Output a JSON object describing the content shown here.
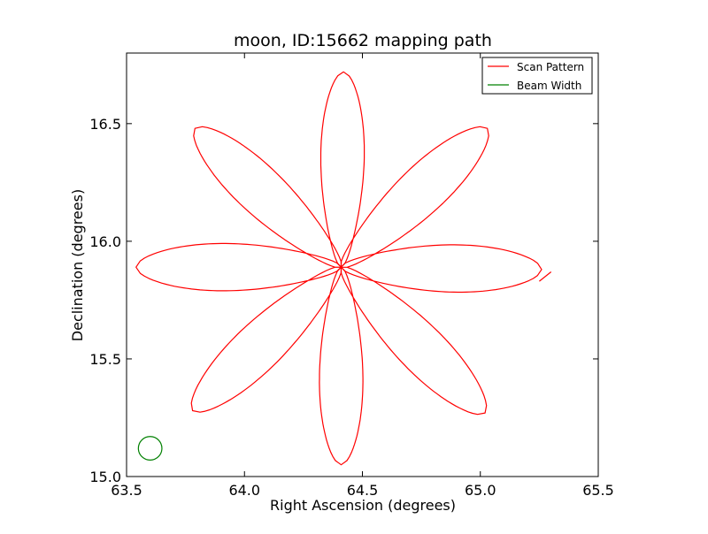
{
  "chart_data": {
    "type": "line",
    "title": "moon, ID:15662 mapping path",
    "xlabel": "Right Ascension (degrees)",
    "ylabel": "Declination (degrees)",
    "xlim": [
      63.5,
      65.5
    ],
    "ylim": [
      15.0,
      16.8
    ],
    "xticks": [
      63.5,
      64.0,
      64.5,
      65.0,
      65.5
    ],
    "xtick_labels": [
      "63.5",
      "64.0",
      "64.5",
      "65.0",
      "65.5"
    ],
    "yticks": [
      15.0,
      15.5,
      16.0,
      16.5
    ],
    "ytick_labels": [
      "15.0",
      "15.5",
      "16.0",
      "16.5"
    ],
    "grid": false,
    "legend_position": "top-right",
    "series": [
      {
        "name": "Scan Pattern",
        "color": "#ff0000",
        "pattern": "rose",
        "center": [
          64.41,
          15.89
        ],
        "petals": [
          {
            "angle_deg": 90,
            "tip": [
              64.42,
              16.72
            ],
            "half_width_deg": 0.11
          },
          {
            "angle_deg": 45,
            "tip": [
              65.03,
              16.48
            ],
            "half_width_deg": 0.12
          },
          {
            "angle_deg": 0,
            "tip": [
              65.26,
              15.88
            ],
            "half_width_deg": 0.12
          },
          {
            "angle_deg": -45,
            "tip": [
              65.02,
              15.27
            ],
            "half_width_deg": 0.12
          },
          {
            "angle_deg": -90,
            "tip": [
              64.41,
              15.05
            ],
            "half_width_deg": 0.11
          },
          {
            "angle_deg": -135,
            "tip": [
              63.78,
              15.28
            ],
            "half_width_deg": 0.12
          },
          {
            "angle_deg": 180,
            "tip": [
              63.54,
              15.89
            ],
            "half_width_deg": 0.12
          },
          {
            "angle_deg": 135,
            "tip": [
              63.79,
              16.48
            ],
            "half_width_deg": 0.12
          }
        ],
        "tail_end": [
          65.3,
          15.87
        ]
      },
      {
        "name": "Beam Width",
        "color": "#008000",
        "shape": "circle",
        "center": [
          63.6,
          15.12
        ],
        "radius_deg": 0.05
      }
    ],
    "legend": [
      "Scan Pattern",
      "Beam Width"
    ]
  }
}
